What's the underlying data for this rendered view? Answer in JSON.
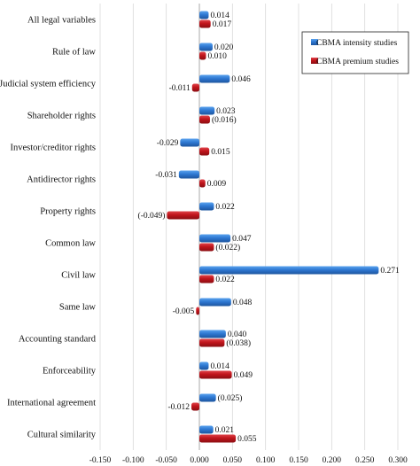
{
  "chart_data": {
    "type": "bar",
    "orientation": "horizontal",
    "categories": [
      "All legal variables",
      "Rule of law",
      "Judicial system efficiency",
      "Shareholder rights",
      "Investor/creditor rights",
      "Antidirector rights",
      "Property rights",
      "Common law",
      "Civil law",
      "Same law",
      "Accounting standard",
      "Enforceability",
      "International agreement",
      "Cultural similarity"
    ],
    "series": [
      {
        "name": "CBMA intensity studies",
        "color": "#2e78d2",
        "values": [
          0.014,
          0.02,
          0.046,
          0.023,
          -0.029,
          -0.031,
          0.022,
          0.047,
          0.271,
          0.048,
          0.04,
          0.014,
          0.025,
          0.021
        ],
        "labels": [
          "0.014",
          "0.020",
          "0.046",
          "0.023",
          "-0.029",
          "-0.031",
          "0.022",
          "0.047",
          "0.271",
          "0.048",
          "0.040",
          "0.014",
          "(0.025)",
          "0.021"
        ]
      },
      {
        "name": "CBMA premium studies",
        "color": "#c0141b",
        "values": [
          0.017,
          0.01,
          -0.011,
          0.016,
          0.015,
          0.009,
          -0.049,
          0.022,
          0.022,
          -0.005,
          0.038,
          0.049,
          -0.012,
          0.055
        ],
        "labels": [
          "0.017",
          "0.010",
          "-0.011",
          "(0.016)",
          "0.015",
          "0.009",
          "(-0.049)",
          "(0.022)",
          "0.022",
          "-0.005",
          "(0.038)",
          "0.049",
          "-0.012",
          "0.055"
        ]
      }
    ],
    "xlim": [
      -0.15,
      0.3
    ],
    "xticks": [
      "-0.150",
      "-0.100",
      "-0.050",
      "0.000",
      "0.050",
      "0.100",
      "0.150",
      "0.200",
      "0.250",
      "0.300"
    ],
    "grid": true,
    "legend_position": "top-right",
    "xlabel": "",
    "ylabel": "",
    "title": ""
  }
}
